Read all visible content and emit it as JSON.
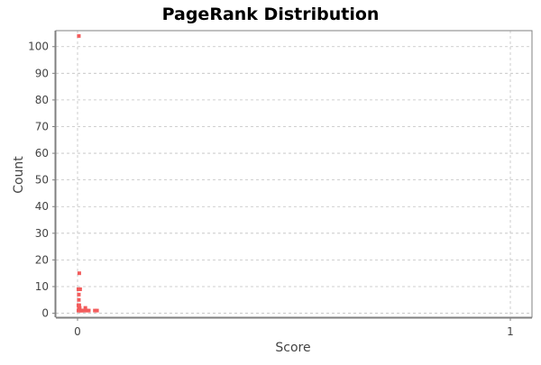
{
  "chart_data": {
    "type": "scatter",
    "title": "PageRank Distribution",
    "xlabel": "Score",
    "ylabel": "Count",
    "xlim": [
      -0.05,
      1.05
    ],
    "ylim": [
      -1.5,
      106
    ],
    "x_ticks": [
      0,
      1
    ],
    "y_ticks": [
      0,
      10,
      20,
      30,
      40,
      50,
      60,
      70,
      80,
      90,
      100
    ],
    "grid": true,
    "legend": "none",
    "colors": {
      "point": "#f25c5c",
      "grid": "#c0c0c0",
      "axis": "#808080"
    },
    "series": [
      {
        "points": [
          [
            0.003,
            104
          ],
          [
            0.004,
            15
          ],
          [
            0.002,
            9
          ],
          [
            0.004,
            9
          ],
          [
            0.006,
            9
          ],
          [
            0.003,
            7
          ],
          [
            0.003,
            5
          ],
          [
            0.002,
            3
          ],
          [
            0.004,
            3
          ],
          [
            0.003,
            2
          ],
          [
            0.005,
            2
          ],
          [
            0.002,
            1
          ],
          [
            0.004,
            1
          ],
          [
            0.006,
            1
          ],
          [
            0.008,
            1
          ],
          [
            0.01,
            1
          ],
          [
            0.013,
            1
          ],
          [
            0.016,
            1
          ],
          [
            0.018,
            2
          ],
          [
            0.022,
            1
          ],
          [
            0.026,
            1
          ],
          [
            0.04,
            1
          ],
          [
            0.045,
            1
          ]
        ]
      }
    ]
  }
}
